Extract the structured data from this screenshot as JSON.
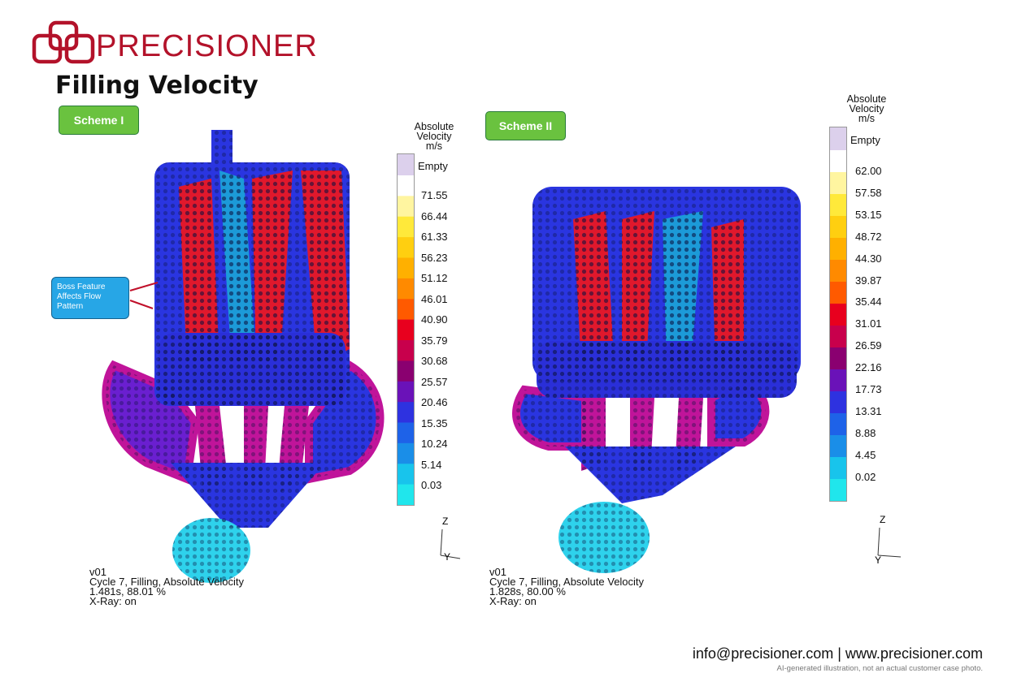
{
  "header": {
    "brand": "PRECISIONER",
    "title": "Filling Velocity"
  },
  "scheme_1": {
    "label": "Scheme I",
    "callout": [
      "Boss Feature",
      "Affects Flow",
      "Pattern"
    ],
    "legend_title": [
      "Absolute",
      "Velocity",
      "m/s"
    ],
    "legend_empty": "Empty",
    "legend_ticks": [
      "71.55",
      "66.44",
      "61.33",
      "56.23",
      "51.12",
      "46.01",
      "40.90",
      "35.79",
      "30.68",
      "25.57",
      "20.46",
      "15.35",
      "10.24",
      "5.14",
      "0.03"
    ],
    "info": [
      "v01",
      "Cycle 7, Filling, Absolute Velocity",
      "1.481s, 88.01 %",
      "X-Ray: on"
    ],
    "axis": {
      "z": "Z",
      "y": "Y"
    }
  },
  "scheme_2": {
    "label": "Scheme II",
    "legend_title": [
      "Absolute",
      "Velocity",
      "m/s"
    ],
    "legend_empty": "Empty",
    "legend_ticks": [
      "62.00",
      "57.58",
      "53.15",
      "48.72",
      "44.30",
      "39.87",
      "35.44",
      "31.01",
      "26.59",
      "22.16",
      "17.73",
      "13.31",
      "8.88",
      "4.45",
      "0.02"
    ],
    "info": [
      "v01",
      "Cycle 7, Filling, Absolute Velocity",
      "1.828s, 80.00 %",
      "X-Ray: on"
    ],
    "axis": {
      "z": "Z",
      "y": "Y"
    }
  },
  "legend_colors": [
    "#ffffff",
    "#fff5a0",
    "#ffe93a",
    "#ffcf10",
    "#ffb000",
    "#ff8a00",
    "#ff5a00",
    "#e8001e",
    "#c8004c",
    "#8a0070",
    "#6a12b8",
    "#2e32e0",
    "#1e62e8",
    "#1a8ee8",
    "#18c4ec",
    "#20e6ec"
  ],
  "empty_color": "#dcd0ec",
  "footer": {
    "contact": "info@precisioner.com | www.precisioner.com",
    "disclaimer": "AI-generated illustration, not an actual customer case photo."
  }
}
